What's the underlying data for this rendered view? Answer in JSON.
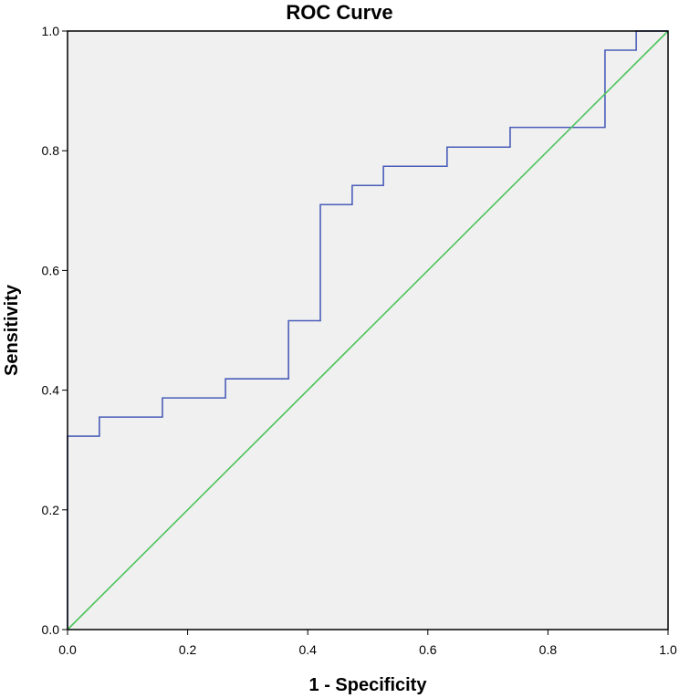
{
  "chart_data": {
    "type": "line",
    "title": "ROC Curve",
    "xlabel": "1 - Specificity",
    "ylabel": "Sensitivity",
    "xlim": [
      0,
      1
    ],
    "ylim": [
      0,
      1
    ],
    "x_ticks": [
      "0.0",
      "0.2",
      "0.4",
      "0.6",
      "0.8",
      "1.0"
    ],
    "y_ticks": [
      "0.0",
      "0.2",
      "0.4",
      "0.6",
      "0.8",
      "1.0"
    ],
    "grid": false,
    "background_color": "#f0f0f0",
    "series": [
      {
        "color": "#4a5db8",
        "points": [
          [
            0.0,
            0.0
          ],
          [
            0.0,
            0.323
          ],
          [
            0.053,
            0.323
          ],
          [
            0.053,
            0.355
          ],
          [
            0.158,
            0.355
          ],
          [
            0.158,
            0.387
          ],
          [
            0.263,
            0.387
          ],
          [
            0.263,
            0.419
          ],
          [
            0.368,
            0.419
          ],
          [
            0.368,
            0.516
          ],
          [
            0.421,
            0.516
          ],
          [
            0.421,
            0.71
          ],
          [
            0.474,
            0.71
          ],
          [
            0.474,
            0.742
          ],
          [
            0.526,
            0.742
          ],
          [
            0.526,
            0.774
          ],
          [
            0.632,
            0.774
          ],
          [
            0.632,
            0.806
          ],
          [
            0.737,
            0.806
          ],
          [
            0.737,
            0.839
          ],
          [
            0.895,
            0.839
          ],
          [
            0.895,
            0.968
          ],
          [
            0.947,
            0.968
          ],
          [
            0.947,
            1.0
          ],
          [
            1.0,
            1.0
          ]
        ]
      },
      {
        "color": "#4cc45a",
        "points": [
          [
            0.0,
            0.0
          ],
          [
            1.0,
            1.0
          ]
        ]
      }
    ]
  }
}
